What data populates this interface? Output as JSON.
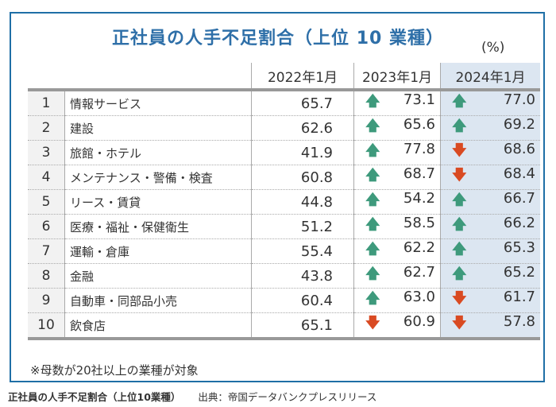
{
  "title": "正社員の人手不足割合（上位 10 業種）",
  "unit": "(%)",
  "columns": [
    "2022年1月",
    "2023年1月",
    "2024年1月"
  ],
  "colors": {
    "up": "#3e9a7c",
    "down": "#d94a22",
    "highlight": "#dce6f1",
    "frame": "#1f6fa6"
  },
  "rows": [
    {
      "rank": "1",
      "name": "情報サービス",
      "v2022": "65.7",
      "v2023": "73.1",
      "t2023": "up",
      "v2024": "77.0",
      "t2024": "up"
    },
    {
      "rank": "2",
      "name": "建設",
      "v2022": "62.6",
      "v2023": "65.6",
      "t2023": "up",
      "v2024": "69.2",
      "t2024": "up"
    },
    {
      "rank": "3",
      "name": "旅館・ホテル",
      "v2022": "41.9",
      "v2023": "77.8",
      "t2023": "up",
      "v2024": "68.6",
      "t2024": "down"
    },
    {
      "rank": "4",
      "name": "メンテナンス・警備・検査",
      "v2022": "60.8",
      "v2023": "68.7",
      "t2023": "up",
      "v2024": "68.4",
      "t2024": "down"
    },
    {
      "rank": "5",
      "name": "リース・賃貸",
      "v2022": "44.8",
      "v2023": "54.2",
      "t2023": "up",
      "v2024": "66.7",
      "t2024": "up"
    },
    {
      "rank": "6",
      "name": "医療・福祉・保健衛生",
      "v2022": "51.2",
      "v2023": "58.5",
      "t2023": "up",
      "v2024": "66.2",
      "t2024": "up"
    },
    {
      "rank": "7",
      "name": "運輸・倉庫",
      "v2022": "55.4",
      "v2023": "62.2",
      "t2023": "up",
      "v2024": "65.3",
      "t2024": "up"
    },
    {
      "rank": "8",
      "name": "金融",
      "v2022": "43.8",
      "v2023": "62.7",
      "t2023": "up",
      "v2024": "65.2",
      "t2024": "up"
    },
    {
      "rank": "9",
      "name": "自動車・同部品小売",
      "v2022": "60.4",
      "v2023": "63.0",
      "t2023": "up",
      "v2024": "61.7",
      "t2024": "down"
    },
    {
      "rank": "10",
      "name": "飲食店",
      "v2022": "65.1",
      "v2023": "60.9",
      "t2023": "down",
      "v2024": "57.8",
      "t2024": "down"
    }
  ],
  "note": "※母数が20社以上の業種が対象",
  "caption": {
    "title": "正社員の人手不足割合（上位10業種）",
    "source": "出典：帝国データバンクプレスリリース"
  }
}
